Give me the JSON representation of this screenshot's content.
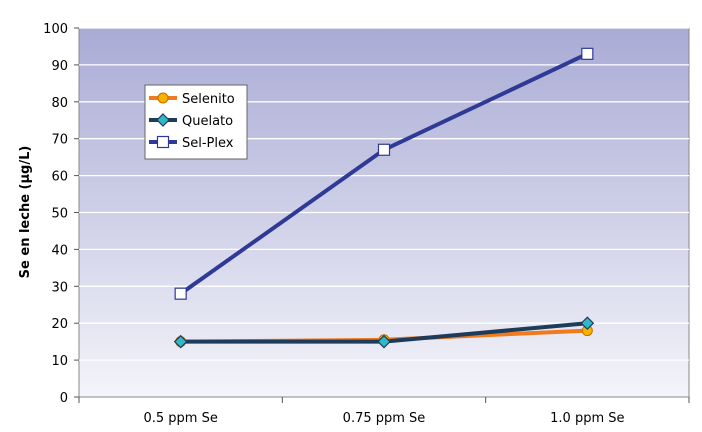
{
  "chart_data": {
    "type": "line",
    "title": "",
    "xlabel": "",
    "ylabel": "Se en leche (µg/L)",
    "ylim": [
      0,
      100
    ],
    "yticks": [
      0,
      10,
      20,
      30,
      40,
      50,
      60,
      70,
      80,
      90,
      100
    ],
    "categories": [
      "0.5 ppm Se",
      "0.75 ppm Se",
      "1.0 ppm Se"
    ],
    "grid": true,
    "legend_position": "top-left",
    "series": [
      {
        "name": "Selenito",
        "values": [
          15,
          15.5,
          18
        ],
        "color": "#f07a1e",
        "marker": "circle",
        "marker_fill": "#f5b400"
      },
      {
        "name": "Quelato",
        "values": [
          15,
          15,
          20
        ],
        "color": "#1f3b5a",
        "marker": "diamond",
        "marker_fill": "#2fb8c8"
      },
      {
        "name": "Sel-Plex",
        "values": [
          28,
          67,
          93
        ],
        "color": "#2e3a96",
        "marker": "square",
        "marker_fill": "#ffffff"
      }
    ]
  }
}
